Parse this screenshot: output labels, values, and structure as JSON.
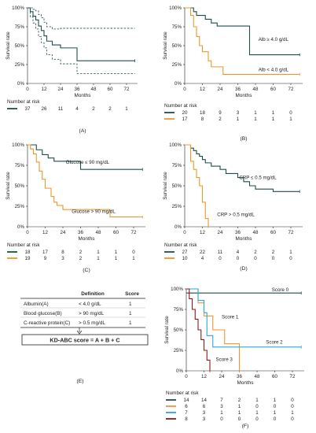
{
  "colors": {
    "dark": "#1f4e4d",
    "orange": "#f0962e",
    "blue": "#2aa7d8",
    "red": "#8b1b1b",
    "axis": "#222222"
  },
  "common": {
    "ylabel": "Survival rate",
    "xlabel": "Months",
    "number_at_risk": "Number at risk",
    "y_ticks": [
      "0%",
      "25%",
      "50%",
      "75%",
      "100%"
    ],
    "x_ticks": [
      "0",
      "12",
      "24",
      "36",
      "48",
      "60",
      "72"
    ]
  },
  "chart_data": [
    {
      "panel": "(A)",
      "type": "line",
      "xlim": [
        0,
        80
      ],
      "ylim": [
        0,
        1
      ],
      "series": [
        {
          "color": "#1f4e4d",
          "ci": true,
          "x": [
            0,
            2,
            4,
            6,
            8,
            10,
            12,
            14,
            18,
            24,
            36,
            78
          ],
          "y": [
            1.0,
            0.95,
            0.89,
            0.84,
            0.76,
            0.7,
            0.63,
            0.56,
            0.51,
            0.47,
            0.3,
            0.3
          ],
          "ci_upper": [
            1.0,
            1.0,
            0.98,
            0.96,
            0.91,
            0.87,
            0.81,
            0.75,
            0.72,
            0.73,
            0.73,
            0.73
          ],
          "ci_lower": [
            1.0,
            0.88,
            0.8,
            0.72,
            0.62,
            0.54,
            0.47,
            0.38,
            0.32,
            0.26,
            0.13,
            0.13
          ],
          "risk": [
            "37",
            "26",
            "11",
            "4",
            "2",
            "2",
            "1"
          ]
        }
      ]
    },
    {
      "panel": "(B)",
      "type": "line",
      "xlim": [
        0,
        80
      ],
      "ylim": [
        0,
        1
      ],
      "series": [
        {
          "name": "Alb ≥ 4.0 g/dL",
          "color": "#1f4e4d",
          "x": [
            0,
            2,
            6,
            8,
            14,
            18,
            22,
            44,
            78
          ],
          "y": [
            1.0,
            1.0,
            0.95,
            0.9,
            0.85,
            0.8,
            0.76,
            0.38,
            0.38
          ],
          "risk": [
            "20",
            "18",
            "9",
            "3",
            "1",
            "1",
            "0"
          ]
        },
        {
          "name": "Alb < 4.0 g/dL",
          "color": "#f0962e",
          "x": [
            0,
            4,
            6,
            8,
            10,
            12,
            16,
            18,
            26,
            78
          ],
          "y": [
            1.0,
            0.9,
            0.75,
            0.62,
            0.5,
            0.42,
            0.3,
            0.22,
            0.12,
            0.12
          ],
          "risk": [
            "17",
            "8",
            "2",
            "1",
            "1",
            "1",
            "1"
          ]
        }
      ]
    },
    {
      "panel": "(C)",
      "type": "line",
      "xlim": [
        0,
        80
      ],
      "ylim": [
        0,
        1
      ],
      "series": [
        {
          "name": "Glucose ≤ 90 mg/dL",
          "color": "#1f4e4d",
          "x": [
            0,
            6,
            10,
            14,
            18,
            36,
            78
          ],
          "y": [
            1.0,
            0.94,
            0.88,
            0.84,
            0.8,
            0.7,
            0.7
          ],
          "risk": [
            "18",
            "17",
            "8",
            "2",
            "1",
            "1",
            "0"
          ]
        },
        {
          "name": "Glucose > 90 mg/dL",
          "color": "#f0962e",
          "x": [
            0,
            2,
            4,
            6,
            8,
            10,
            12,
            16,
            18,
            20,
            24,
            56,
            78
          ],
          "y": [
            1.0,
            0.95,
            0.89,
            0.79,
            0.68,
            0.58,
            0.47,
            0.37,
            0.3,
            0.26,
            0.21,
            0.12,
            0.12
          ],
          "risk": [
            "19",
            "9",
            "3",
            "2",
            "1",
            "1",
            "1"
          ]
        }
      ]
    },
    {
      "panel": "(D)",
      "type": "line",
      "xlim": [
        0,
        80
      ],
      "ylim": [
        0,
        1
      ],
      "series": [
        {
          "name": "CRP ≤ 0.5 mg/dL",
          "color": "#1f4e4d",
          "x": [
            0,
            4,
            6,
            8,
            10,
            12,
            14,
            18,
            24,
            28,
            36,
            40,
            44,
            48,
            60,
            78
          ],
          "y": [
            1.0,
            0.96,
            0.93,
            0.89,
            0.86,
            0.82,
            0.78,
            0.74,
            0.7,
            0.65,
            0.6,
            0.55,
            0.5,
            0.46,
            0.43,
            0.43
          ],
          "risk": [
            "27",
            "22",
            "11",
            "4",
            "2",
            "2",
            "1"
          ]
        },
        {
          "name": "CRP > 0.5 mg/dL",
          "color": "#f0962e",
          "x": [
            0,
            4,
            6,
            8,
            10,
            12,
            14,
            16
          ],
          "y": [
            1.0,
            0.8,
            0.7,
            0.6,
            0.5,
            0.3,
            0.1,
            0.0
          ],
          "risk": [
            "10",
            "4",
            "0",
            "0",
            "0",
            "0",
            "0"
          ]
        }
      ]
    },
    {
      "panel": "(F)",
      "type": "line",
      "xlim": [
        0,
        80
      ],
      "ylim": [
        0,
        1
      ],
      "series": [
        {
          "name": "Score 0",
          "color": "#1f4e4d",
          "x": [
            0,
            78
          ],
          "y": [
            0.95,
            0.95
          ],
          "risk": [
            "14",
            "14",
            "7",
            "2",
            "1",
            "1",
            "0"
          ]
        },
        {
          "name": "Score 1",
          "color": "#f0962e",
          "x": [
            0,
            8,
            12,
            18,
            26,
            34,
            36
          ],
          "y": [
            1.0,
            0.83,
            0.67,
            0.5,
            0.33,
            0.33,
            0.0
          ],
          "risk": [
            "6",
            "6",
            "3",
            "1",
            "0",
            "0",
            "0"
          ]
        },
        {
          "name": "Score 2",
          "color": "#2aa7d8",
          "x": [
            0,
            8,
            12,
            14,
            18,
            78
          ],
          "y": [
            1.0,
            0.86,
            0.71,
            0.43,
            0.29,
            0.29
          ],
          "risk": [
            "7",
            "3",
            "1",
            "1",
            "1",
            "1",
            "1"
          ]
        },
        {
          "name": "Score 3",
          "color": "#8b1b1b",
          "x": [
            0,
            2,
            4,
            6,
            8,
            10,
            12,
            14,
            16
          ],
          "y": [
            1.0,
            0.88,
            0.75,
            0.63,
            0.5,
            0.38,
            0.25,
            0.13,
            0.0
          ],
          "risk": [
            "8",
            "3",
            "0",
            "0",
            "0",
            "0",
            "0"
          ]
        }
      ]
    }
  ],
  "table": {
    "headers": [
      "",
      "Definition",
      "Score"
    ],
    "rows": [
      [
        "Albumin(A)",
        "< 4.0 g/dL",
        "1"
      ],
      [
        "Blood glucose(B)",
        "> 90 mg/dL",
        "1"
      ],
      [
        "C-reactive protein(C)",
        "> 0.5 mg/dL",
        "1"
      ]
    ],
    "formula": "KD-ABC score = A + B + C",
    "panel": "(E)"
  }
}
